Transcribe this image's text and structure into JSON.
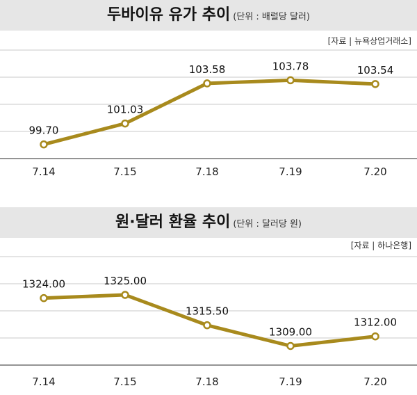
{
  "chart_data": [
    {
      "type": "line",
      "title": "두바이유 유가 추이",
      "unit": "(단위 : 배럴당 달러)",
      "source": "[자료 | 뉴욕상업거래소]",
      "categories": [
        "7.14",
        "7.15",
        "7.18",
        "7.19",
        "7.20"
      ],
      "series": [
        {
          "values": [
            99.7,
            101.03,
            103.58,
            103.78,
            103.54
          ]
        }
      ],
      "value_labels": [
        "99.70",
        "101.03",
        "103.58",
        "103.78",
        "103.54"
      ],
      "ylim": [
        98.8,
        105.7
      ],
      "grid": true,
      "color": "#a88a1d"
    },
    {
      "type": "line",
      "title": "원·달러 환율 추이",
      "unit": "(단위 : 달러당 원)",
      "source": "[자료 | 하나은행]",
      "categories": [
        "7.14",
        "7.15",
        "7.18",
        "7.19",
        "7.20"
      ],
      "series": [
        {
          "values": [
            1324.0,
            1325.0,
            1315.5,
            1309.0,
            1312.0
          ]
        }
      ],
      "value_labels": [
        "1324.00",
        "1325.00",
        "1315.50",
        "1309.00",
        "1312.00"
      ],
      "ylim": [
        1303.0,
        1337.0
      ],
      "grid": true,
      "color": "#a88a1d"
    }
  ]
}
